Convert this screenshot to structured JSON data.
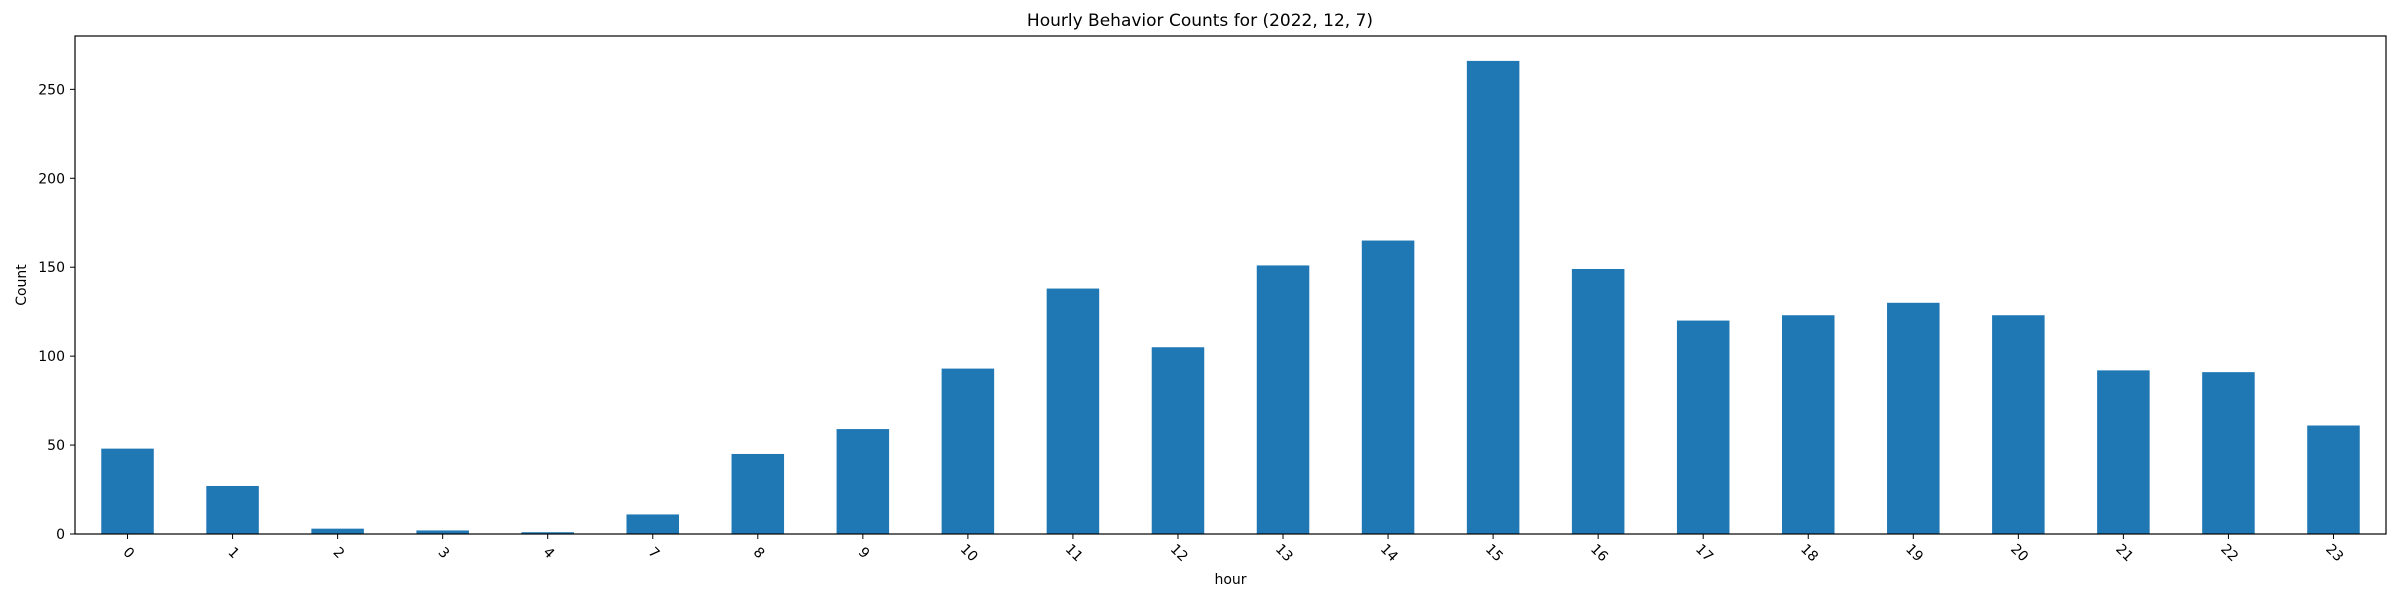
{
  "chart_data": {
    "type": "bar",
    "title": "Hourly Behavior Counts for (2022, 12, 7)",
    "xlabel": "hour",
    "ylabel": "Count",
    "categories": [
      "0",
      "1",
      "2",
      "3",
      "4",
      "7",
      "8",
      "9",
      "10",
      "11",
      "12",
      "13",
      "14",
      "15",
      "16",
      "17",
      "18",
      "19",
      "20",
      "21",
      "22",
      "23"
    ],
    "values": [
      48,
      27,
      3,
      2,
      1,
      11,
      45,
      59,
      93,
      138,
      105,
      151,
      165,
      266,
      149,
      120,
      123,
      130,
      123,
      92,
      91,
      61
    ],
    "ylim": [
      0,
      280
    ],
    "yticks": [
      0,
      50,
      100,
      150,
      200,
      250
    ],
    "bar_color": "#1f77b4",
    "grid": false,
    "legend": "none"
  }
}
